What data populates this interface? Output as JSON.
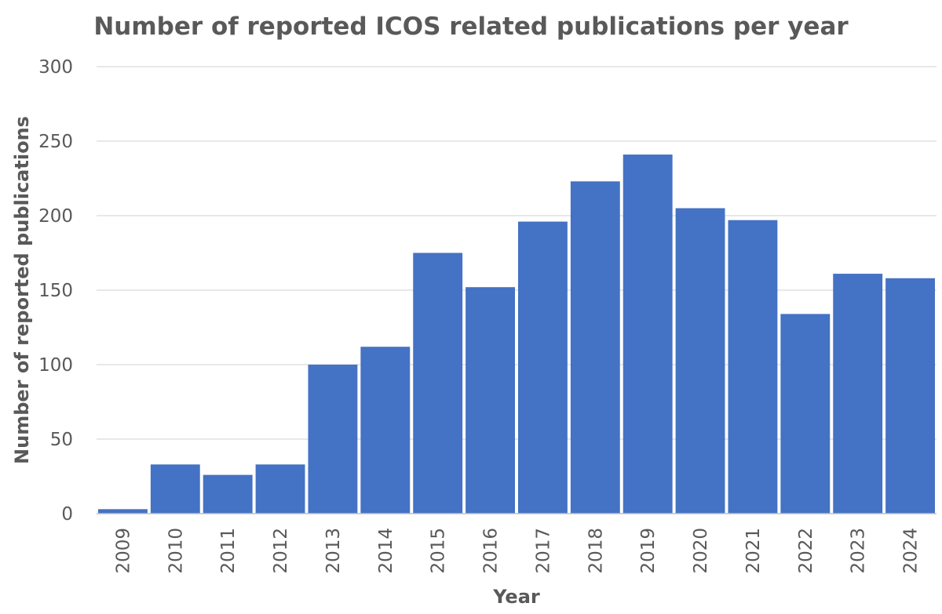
{
  "chart_data": {
    "type": "bar",
    "title": "Number of reported ICOS related publications per year",
    "xlabel": "Year",
    "ylabel": "Number of reported publications",
    "categories": [
      "2009",
      "2010",
      "2011",
      "2012",
      "2013",
      "2014",
      "2015",
      "2016",
      "2017",
      "2018",
      "2019",
      "2020",
      "2021",
      "2022",
      "2023",
      "2024"
    ],
    "values": [
      3,
      33,
      26,
      33,
      100,
      112,
      175,
      152,
      196,
      223,
      241,
      205,
      197,
      134,
      161,
      158
    ],
    "ylim": [
      0,
      300
    ],
    "yticks": [
      "0",
      "50",
      "100",
      "150",
      "200",
      "250",
      "300"
    ],
    "grid": true,
    "legend": "none",
    "bar_color": "#4472c4"
  }
}
